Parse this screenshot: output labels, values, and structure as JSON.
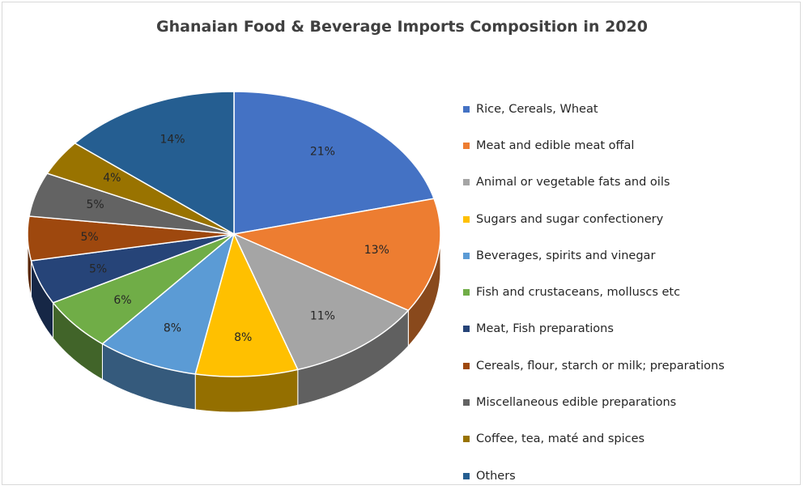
{
  "chart_data": {
    "type": "pie",
    "title": "Ghanaian Food & Beverage Imports Composition in 2020",
    "legend_position": "right",
    "style": "3d-pie",
    "slices": [
      {
        "label": "Rice, Cereals, Wheat",
        "value": 21,
        "display": "21%",
        "color": "#4472C4"
      },
      {
        "label": "Meat and edible meat offal",
        "value": 13,
        "display": "13%",
        "color": "#ED7D31"
      },
      {
        "label": "Animal or vegetable fats and oils",
        "value": 11,
        "display": "11%",
        "color": "#A5A5A5"
      },
      {
        "label": "Sugars and sugar confectionery",
        "value": 8,
        "display": "8%",
        "color": "#FFC000"
      },
      {
        "label": "Beverages, spirits and vinegar",
        "value": 8,
        "display": "8%",
        "color": "#5B9BD5"
      },
      {
        "label": "Fish and crustaceans, molluscs etc",
        "value": 6,
        "display": "6%",
        "color": "#70AD47"
      },
      {
        "label": "Meat, Fish preparations",
        "value": 5,
        "display": "5%",
        "color": "#264478"
      },
      {
        "label": "Cereals, flour, starch or milk; preparations",
        "value": 5,
        "display": "5%",
        "color": "#9E480E"
      },
      {
        "label": "Miscellaneous edible preparations",
        "value": 5,
        "display": "5%",
        "color": "#636363"
      },
      {
        "label": "Coffee, tea, maté and spices",
        "value": 4,
        "display": "4%",
        "color": "#997300"
      },
      {
        "label": "Others",
        "value": 14,
        "display": "14%",
        "color": "#255E91"
      }
    ]
  }
}
